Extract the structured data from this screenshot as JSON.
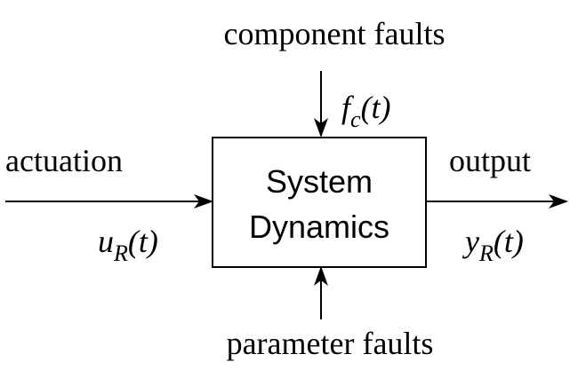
{
  "block": {
    "line1": "System",
    "line2": "Dynamics"
  },
  "inputs": {
    "component_faults": {
      "label": "component faults",
      "symbol": "f",
      "subscript": "c",
      "arg": "(t)"
    },
    "actuation": {
      "label": "actuation",
      "symbol": "u",
      "subscript": "R",
      "arg": "(t)"
    },
    "parameter_faults": {
      "label": "parameter faults"
    }
  },
  "outputs": {
    "output": {
      "label": "output",
      "symbol": "y",
      "subscript": "R",
      "arg": "(t)"
    }
  }
}
